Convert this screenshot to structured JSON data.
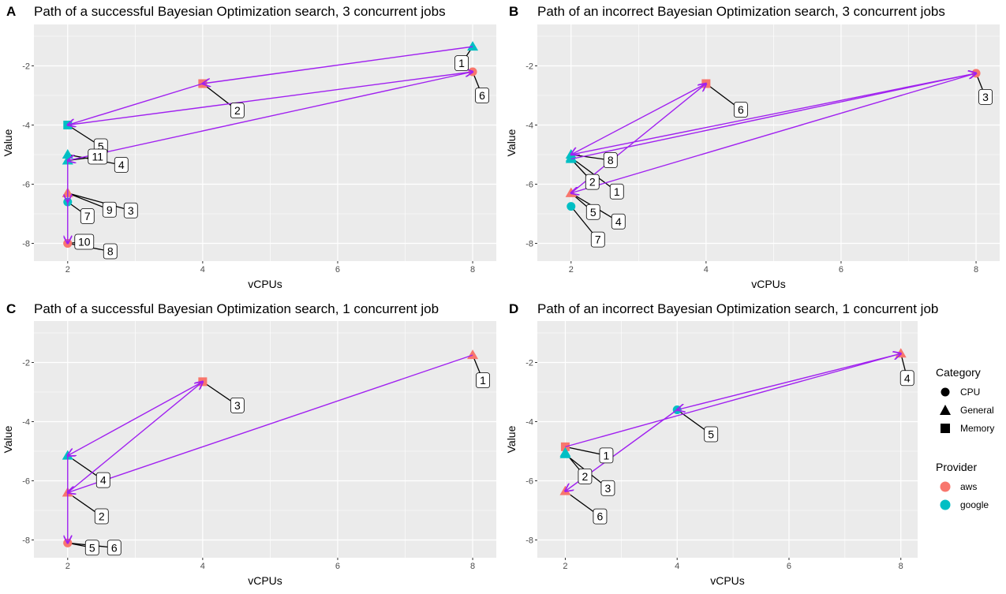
{
  "colors": {
    "aws": "#F8766D",
    "google": "#00BFC4",
    "path": "#A020F0",
    "panel": "#EBEBEB"
  },
  "legend": {
    "category_title": "Category",
    "categories": [
      {
        "name": "CPU",
        "shape": "circle"
      },
      {
        "name": "General",
        "shape": "triangle"
      },
      {
        "name": "Memory",
        "shape": "square"
      }
    ],
    "provider_title": "Provider",
    "providers": [
      {
        "name": "aws",
        "color": "#F8766D"
      },
      {
        "name": "google",
        "color": "#00BFC4"
      }
    ]
  },
  "chart_data": [
    {
      "tag": "A",
      "type": "scatter",
      "title": "Path of a successful Bayesian Optimization search, 3 concurrent jobs",
      "xlabel": "vCPUs",
      "ylabel": "Value",
      "xlim": [
        1.5,
        8.35
      ],
      "ylim": [
        -8.6,
        -0.6
      ],
      "xticks": [
        2,
        4,
        6,
        8
      ],
      "yticks": [
        -2,
        -4,
        -6,
        -8
      ],
      "grid": true,
      "points": [
        {
          "label": "1",
          "x": 8,
          "y": -1.35,
          "provider": "google",
          "category": "General"
        },
        {
          "label": "2",
          "x": 4,
          "y": -2.6,
          "provider": "aws",
          "category": "Memory"
        },
        {
          "label": "3",
          "x": 2,
          "y": -6.3,
          "provider": "aws",
          "category": "General"
        },
        {
          "label": "4",
          "x": 2,
          "y": -5.0,
          "provider": "google",
          "category": "General"
        },
        {
          "label": "5",
          "x": 2,
          "y": -4.0,
          "provider": "google",
          "category": "Memory"
        },
        {
          "label": "6",
          "x": 8,
          "y": -2.2,
          "provider": "aws",
          "category": "CPU"
        },
        {
          "label": "7",
          "x": 2,
          "y": -6.6,
          "provider": "google",
          "category": "CPU"
        },
        {
          "label": "8",
          "x": 2,
          "y": -8.0,
          "provider": "aws",
          "category": "CPU"
        },
        {
          "label": "9",
          "x": 2,
          "y": -6.3,
          "provider": "aws",
          "category": "General"
        },
        {
          "label": "10",
          "x": 2,
          "y": -8.0,
          "provider": "aws",
          "category": "CPU"
        },
        {
          "label": "11",
          "x": 2,
          "y": -5.2,
          "provider": "google",
          "category": "General"
        }
      ],
      "path_order": [
        "1",
        "2",
        "5",
        "6",
        "11",
        "7",
        "8"
      ]
    },
    {
      "tag": "B",
      "type": "scatter",
      "title": "Path of an incorrect Bayesian Optimization search, 3 concurrent jobs",
      "xlabel": "vCPUs",
      "ylabel": "Value",
      "xlim": [
        1.5,
        8.35
      ],
      "ylim": [
        -8.6,
        -0.6
      ],
      "xticks": [
        2,
        4,
        6,
        8
      ],
      "yticks": [
        -2,
        -4,
        -6,
        -8
      ],
      "grid": true,
      "points": [
        {
          "label": "1",
          "x": 2,
          "y": -5.1,
          "provider": "google",
          "category": "General"
        },
        {
          "label": "2",
          "x": 2,
          "y": -5.15,
          "provider": "google",
          "category": "General"
        },
        {
          "label": "3",
          "x": 8,
          "y": -2.25,
          "provider": "aws",
          "category": "CPU"
        },
        {
          "label": "4",
          "x": 2,
          "y": -6.3,
          "provider": "aws",
          "category": "General"
        },
        {
          "label": "5",
          "x": 2,
          "y": -6.3,
          "provider": "aws",
          "category": "General"
        },
        {
          "label": "6",
          "x": 4,
          "y": -2.6,
          "provider": "aws",
          "category": "Memory"
        },
        {
          "label": "7",
          "x": 2,
          "y": -6.75,
          "provider": "google",
          "category": "CPU"
        },
        {
          "label": "8",
          "x": 2,
          "y": -5.0,
          "provider": "google",
          "category": "General"
        }
      ],
      "path_order": [
        "2",
        "3",
        "5",
        "6",
        "8",
        "3"
      ]
    },
    {
      "tag": "C",
      "type": "scatter",
      "title": "Path of a successful Bayesian Optimization search, 1 concurrent job",
      "xlabel": "vCPUs",
      "ylabel": "Value",
      "xlim": [
        1.5,
        8.35
      ],
      "ylim": [
        -8.6,
        -0.6
      ],
      "xticks": [
        2,
        4,
        6,
        8
      ],
      "yticks": [
        -2,
        -4,
        -6,
        -8
      ],
      "grid": true,
      "points": [
        {
          "label": "1",
          "x": 8,
          "y": -1.75,
          "provider": "aws",
          "category": "General"
        },
        {
          "label": "2",
          "x": 2,
          "y": -6.4,
          "provider": "aws",
          "category": "General"
        },
        {
          "label": "3",
          "x": 4,
          "y": -2.65,
          "provider": "aws",
          "category": "Memory"
        },
        {
          "label": "4",
          "x": 2,
          "y": -5.15,
          "provider": "google",
          "category": "General"
        },
        {
          "label": "5",
          "x": 2,
          "y": -8.1,
          "provider": "aws",
          "category": "CPU"
        },
        {
          "label": "6",
          "x": 2,
          "y": -8.1,
          "provider": "aws",
          "category": "CPU"
        }
      ],
      "path_order": [
        "1",
        "2",
        "3",
        "4",
        "5"
      ]
    },
    {
      "tag": "D",
      "type": "scatter",
      "title": "Path of an incorrect Bayesian Optimization search, 1 concurrent job",
      "xlabel": "vCPUs",
      "ylabel": "Value",
      "xlim": [
        1.5,
        8.3
      ],
      "ylim": [
        -8.6,
        -0.6
      ],
      "xticks": [
        2,
        4,
        6,
        8
      ],
      "yticks": [
        -2,
        -4,
        -6,
        -8
      ],
      "grid": true,
      "points": [
        {
          "label": "1",
          "x": 2,
          "y": -4.85,
          "provider": "aws",
          "category": "Memory"
        },
        {
          "label": "2",
          "x": 2,
          "y": -5.05,
          "provider": "google",
          "category": "General"
        },
        {
          "label": "3",
          "x": 2,
          "y": -5.1,
          "provider": "google",
          "category": "General"
        },
        {
          "label": "4",
          "x": 8,
          "y": -1.7,
          "provider": "aws",
          "category": "General"
        },
        {
          "label": "5",
          "x": 4,
          "y": -3.6,
          "provider": "google",
          "category": "CPU"
        },
        {
          "label": "6",
          "x": 2,
          "y": -6.35,
          "provider": "aws",
          "category": "General"
        }
      ],
      "path_order": [
        "1",
        "4",
        "5",
        "6"
      ]
    }
  ]
}
